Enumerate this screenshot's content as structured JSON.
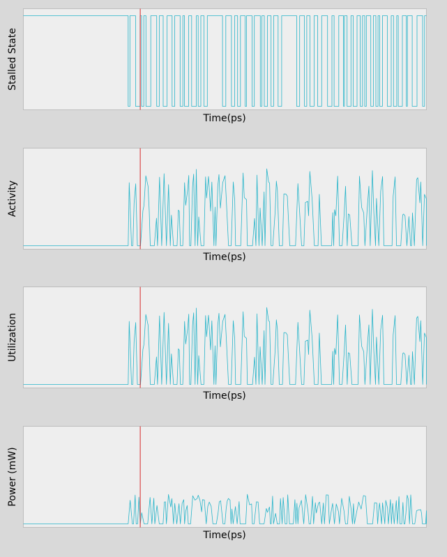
{
  "colors": {
    "background": "#d9d9d9",
    "plot_background": "#eeeeee",
    "signal": "#26b4c9",
    "marker": "#d62728"
  },
  "chart_data": [
    {
      "type": "line",
      "id": "stalled",
      "ylabel": "Stalled State",
      "xlabel": "Time(ps)",
      "x_range": [
        0,
        1000
      ],
      "ylim": [
        0,
        1
      ],
      "marker_x": 290,
      "kind": "binary",
      "seed": 7,
      "grid": false,
      "legend": "none",
      "tick_labels": false
    },
    {
      "type": "line",
      "id": "activity",
      "ylabel": "Activity",
      "xlabel": "Time(ps)",
      "x_range": [
        0,
        1000
      ],
      "ylim": [
        0,
        1
      ],
      "marker_x": 290,
      "kind": "analog",
      "seed": 13,
      "amplitude": 0.85,
      "grid": false,
      "legend": "none",
      "tick_labels": false
    },
    {
      "type": "line",
      "id": "utilization",
      "ylabel": "Utilization",
      "xlabel": "Time(ps)",
      "x_range": [
        0,
        1000
      ],
      "ylim": [
        0,
        1
      ],
      "marker_x": 290,
      "kind": "analog",
      "seed": 13,
      "amplitude": 0.85,
      "grid": false,
      "legend": "none",
      "tick_labels": false
    },
    {
      "type": "line",
      "id": "power",
      "ylabel": "Power (mW)",
      "xlabel": "Time(ps)",
      "x_range": [
        0,
        1000
      ],
      "ylim": [
        0,
        1
      ],
      "marker_x": 290,
      "kind": "analog",
      "seed": 29,
      "amplitude": 0.33,
      "grid": false,
      "legend": "none",
      "tick_labels": false
    }
  ]
}
